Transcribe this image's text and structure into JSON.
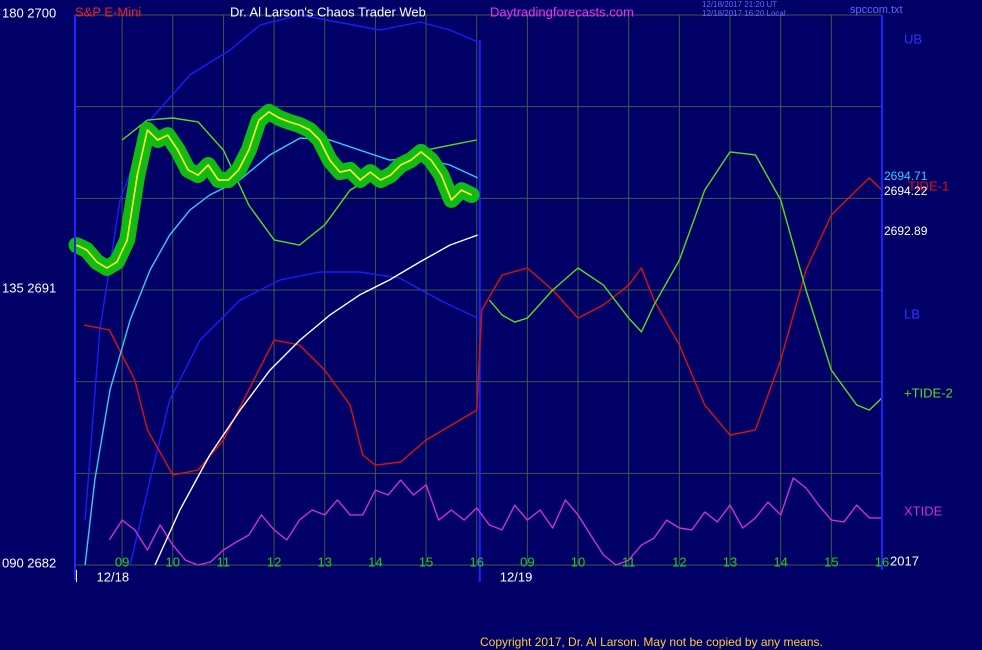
{
  "chart_data": {
    "type": "line",
    "subtitle": "S&P E-Mini",
    "title": "Dr. Al Larson's Chaos Trader Web",
    "site": "Daytradingforecasts.com",
    "timestamps": [
      "12/18/2017 21:20 UT",
      "12/18/2017 16:20 Local"
    ],
    "file": "spccom.txt",
    "copyright": "Copyright 2017, Dr. Al Larson. May not be copied by any means.",
    "year": "2017",
    "end_labels": [
      "2694.71",
      "2694.22",
      "2692.89"
    ],
    "xlim": [
      8.07,
      24
    ],
    "ylim": [
      2682,
      2700
    ],
    "yticks": [
      {
        "value": 2700,
        "label": "180  2700"
      },
      {
        "value": 2691,
        "label": "135  2691"
      },
      {
        "value": 2682,
        "label": "090  2682"
      }
    ],
    "ygrid": [
      2697,
      2694,
      2688,
      2685
    ],
    "xticks": [
      {
        "value": 9,
        "label": "09"
      },
      10,
      11,
      12,
      13,
      14,
      15,
      16,
      {
        "value": 17,
        "label": "09"
      },
      {
        "value": 18,
        "label": "10"
      },
      {
        "value": 19,
        "label": "11"
      },
      {
        "value": 20,
        "label": "12"
      },
      {
        "value": 21,
        "label": "13"
      },
      {
        "value": 22,
        "label": "14"
      },
      {
        "value": 23,
        "label": "15"
      },
      {
        "value": 24,
        "label": "16"
      }
    ],
    "date_ticks": [
      {
        "value": 8.1,
        "label": "12/18"
      },
      {
        "value": 16.06,
        "label": "12/19"
      }
    ],
    "grid": true,
    "series": [
      {
        "name": "UB",
        "color": "#1c1cff",
        "x": [
          8.27,
          8.56,
          8.96,
          9.55,
          10.34,
          11.13,
          11.72,
          12.51,
          14.09,
          14.88,
          15.47,
          16.02
        ],
        "values": [
          2683.47,
          2689.69,
          2693.95,
          2696.56,
          2698.04,
          2698.85,
          2699.67,
          2700.0,
          2699.51,
          2699.77,
          2699.51,
          2699.12
        ]
      },
      {
        "name": "LB",
        "color": "#1c1cff",
        "x": [
          9.16,
          9.55,
          9.94,
          10.54,
          11.33,
          12.12,
          12.91,
          13.69,
          14.48,
          15.27,
          16.02
        ],
        "values": [
          2682.0,
          2684.78,
          2687.4,
          2689.36,
          2690.67,
          2691.33,
          2691.59,
          2691.59,
          2691.39,
          2690.67,
          2690.08
        ]
      },
      {
        "name": "TIDE-1",
        "color": "#dd1111",
        "x": [
          8.25,
          8.75,
          9.25,
          9.5,
          10,
          10.5,
          11,
          11.5,
          12,
          12.5,
          13,
          13.5,
          13.75,
          14,
          14.5,
          15,
          15.5,
          16,
          16.1,
          16.5,
          17,
          17.5,
          18,
          18.5,
          19,
          19.25,
          19.5,
          20,
          20.5,
          21,
          21.5,
          22,
          22.5,
          23,
          23.5,
          23.75,
          24
        ],
        "values": [
          2689.85,
          2689.69,
          2688.05,
          2686.42,
          2684.95,
          2685.11,
          2686.09,
          2687.73,
          2689.36,
          2689.2,
          2688.38,
          2687.24,
          2685.6,
          2685.27,
          2685.37,
          2686.09,
          2686.58,
          2687.07,
          2690.35,
          2691.49,
          2691.72,
          2691.0,
          2690.08,
          2690.51,
          2691.16,
          2691.72,
          2690.67,
          2689.2,
          2687.24,
          2686.25,
          2686.42,
          2688.71,
          2691.65,
          2693.45,
          2694.27,
          2694.67,
          2694.27
        ]
      },
      {
        "name": "+TIDE-2",
        "color": "#55dd22",
        "x": [
          9,
          9.5,
          10,
          10.5,
          11,
          11.5,
          12,
          12.5,
          13,
          13.5,
          14,
          14.5,
          15,
          15.5,
          16,
          16.1,
          16.25,
          16.5,
          16.75,
          17,
          17.5,
          18,
          18.5,
          19,
          19.25,
          19.5,
          20,
          20.5,
          21,
          21.5,
          22,
          22.5,
          23,
          23.5,
          23.75,
          24
        ],
        "values": [
          2695.91,
          2696.56,
          2696.63,
          2696.5,
          2695.58,
          2693.78,
          2692.64,
          2692.47,
          2693.13,
          2694.27,
          2694.76,
          2695.25,
          2695.58,
          2695.75,
          2695.91,
          null,
          2690.67,
          2690.18,
          2689.95,
          2690.08,
          2691.0,
          2691.72,
          2691.16,
          2690.08,
          2689.63,
          2690.51,
          2691.98,
          2694.27,
          2695.52,
          2695.42,
          2693.95,
          2691.0,
          2688.38,
          2687.24,
          2687.07,
          2687.47
        ]
      },
      {
        "name": "XTIDE",
        "color": "#cc33cc",
        "x": [
          8.75,
          9,
          9.25,
          9.5,
          9.75,
          10,
          10.25,
          10.5,
          10.75,
          11,
          11.25,
          11.5,
          11.75,
          12,
          12.25,
          12.5,
          12.75,
          13,
          13.25,
          13.5,
          13.75,
          14,
          14.25,
          14.5,
          14.75,
          15,
          15.25,
          15.5,
          15.75,
          16,
          16.25,
          16.5,
          16.75,
          17,
          17.25,
          17.5,
          17.75,
          18,
          18.25,
          18.5,
          18.75,
          19,
          19.25,
          19.5,
          19.75,
          20,
          20.25,
          20.5,
          20.75,
          21,
          21.25,
          21.5,
          21.75,
          22,
          22.25,
          22.5,
          22.75,
          23,
          23.25,
          23.5,
          23.75,
          24
        ],
        "values": [
          2682.82,
          2683.47,
          2683.15,
          2682.49,
          2683.31,
          2682.65,
          2682.16,
          2682.0,
          2682.1,
          2682.49,
          2682.75,
          2682.98,
          2683.64,
          2683.15,
          2682.82,
          2683.47,
          2683.8,
          2683.64,
          2684.13,
          2683.64,
          2683.64,
          2684.45,
          2684.29,
          2684.78,
          2684.29,
          2684.62,
          2683.47,
          2683.8,
          2683.47,
          2683.87,
          2683.31,
          2683.15,
          2683.96,
          2683.47,
          2683.8,
          2683.21,
          2684.13,
          2683.64,
          2682.98,
          2682.33,
          2682.0,
          2682.16,
          2682.65,
          2682.88,
          2683.47,
          2683.21,
          2683.15,
          2683.73,
          2683.41,
          2683.96,
          2683.21,
          2683.54,
          2684.06,
          2683.64,
          2684.85,
          2684.52,
          2683.96,
          2683.47,
          2683.41,
          2683.96,
          2683.54,
          2683.54
        ]
      },
      {
        "color": "#ffffff",
        "x": [
          9.65,
          10.14,
          10.73,
          11.33,
          11.92,
          12.51,
          13.1,
          13.69,
          14.28,
          14.88,
          15.47,
          16.02
        ],
        "values": [
          2682.0,
          2683.8,
          2685.6,
          2687.07,
          2688.38,
          2689.36,
          2690.18,
          2690.84,
          2691.33,
          2691.92,
          2692.47,
          2692.8
        ]
      },
      {
        "color": "#33ccff",
        "x": [
          8.27,
          8.46,
          8.76,
          9.16,
          9.55,
          9.94,
          10.34,
          10.73,
          11.32,
          11.92,
          12.51,
          13.1,
          13.69,
          14.28,
          14.88,
          15.47,
          16.02
        ],
        "values": [
          2682.0,
          2684.78,
          2687.73,
          2690.02,
          2691.65,
          2692.8,
          2693.62,
          2694.11,
          2694.6,
          2695.42,
          2695.97,
          2695.91,
          2695.58,
          2695.25,
          2695.32,
          2695.09,
          2694.67
        ]
      },
      {
        "color": "#ffff33",
        "halo": "#11bb11",
        "x": [
          8.1,
          8.3,
          8.5,
          8.7,
          8.9,
          9.1,
          9.3,
          9.5,
          9.7,
          9.9,
          10.1,
          10.3,
          10.5,
          10.7,
          10.9,
          11.1,
          11.3,
          11.5,
          11.7,
          11.9,
          12.1,
          12.3,
          12.5,
          12.7,
          12.9,
          13.1,
          13.3,
          13.5,
          13.7,
          13.9,
          14.1,
          14.3,
          14.5,
          14.7,
          14.9,
          15.1,
          15.3,
          15.5,
          15.7,
          15.9
        ],
        "values": [
          2692.47,
          2692.31,
          2691.92,
          2691.72,
          2691.92,
          2692.64,
          2694.76,
          2696.24,
          2695.91,
          2696.07,
          2695.58,
          2694.93,
          2694.76,
          2695.09,
          2694.6,
          2694.6,
          2694.93,
          2695.58,
          2696.56,
          2696.83,
          2696.63,
          2696.5,
          2696.4,
          2696.24,
          2695.91,
          2695.25,
          2694.86,
          2694.93,
          2694.6,
          2694.86,
          2694.6,
          2694.76,
          2695.09,
          2695.25,
          2695.52,
          2695.25,
          2694.76,
          2693.95,
          2694.27,
          2694.11
        ]
      }
    ]
  }
}
